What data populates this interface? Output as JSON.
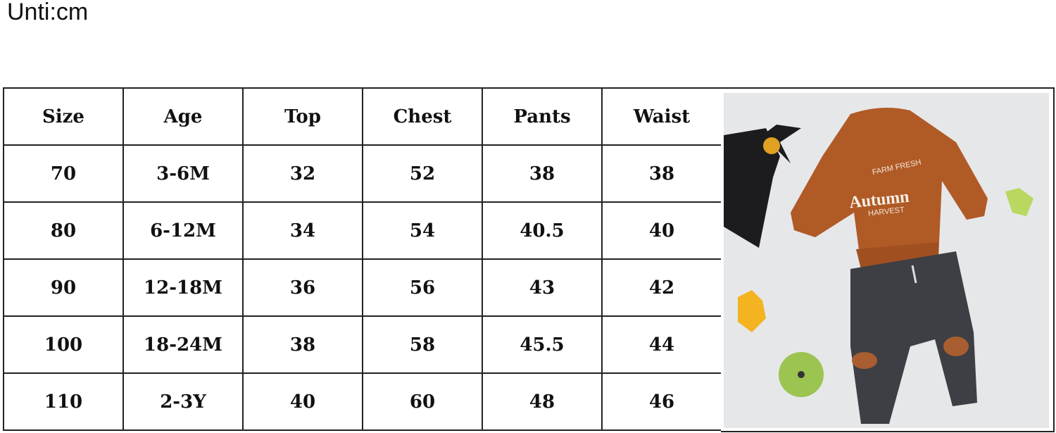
{
  "unit_label": "Unti:cm",
  "table": {
    "headers": [
      "Size",
      "Age",
      "Top",
      "Chest",
      "Pants",
      "Waist"
    ],
    "rows": [
      [
        "70",
        "3-6M",
        "32",
        "52",
        "38",
        "38"
      ],
      [
        "80",
        "6-12M",
        "34",
        "54",
        "40.5",
        "40"
      ],
      [
        "90",
        "12-18M",
        "36",
        "56",
        "43",
        "42"
      ],
      [
        "100",
        "18-24M",
        "38",
        "58",
        "45.5",
        "44"
      ],
      [
        "110",
        "2-3Y",
        "40",
        "60",
        "48",
        "46"
      ]
    ]
  },
  "product_image": {
    "print_text": [
      "FARM FRESH",
      "Autumn",
      "HARVEST"
    ],
    "colors": {
      "sweatshirt": "#b05a26",
      "pants": "#3d3f44",
      "background": "#e6e7e9"
    }
  }
}
